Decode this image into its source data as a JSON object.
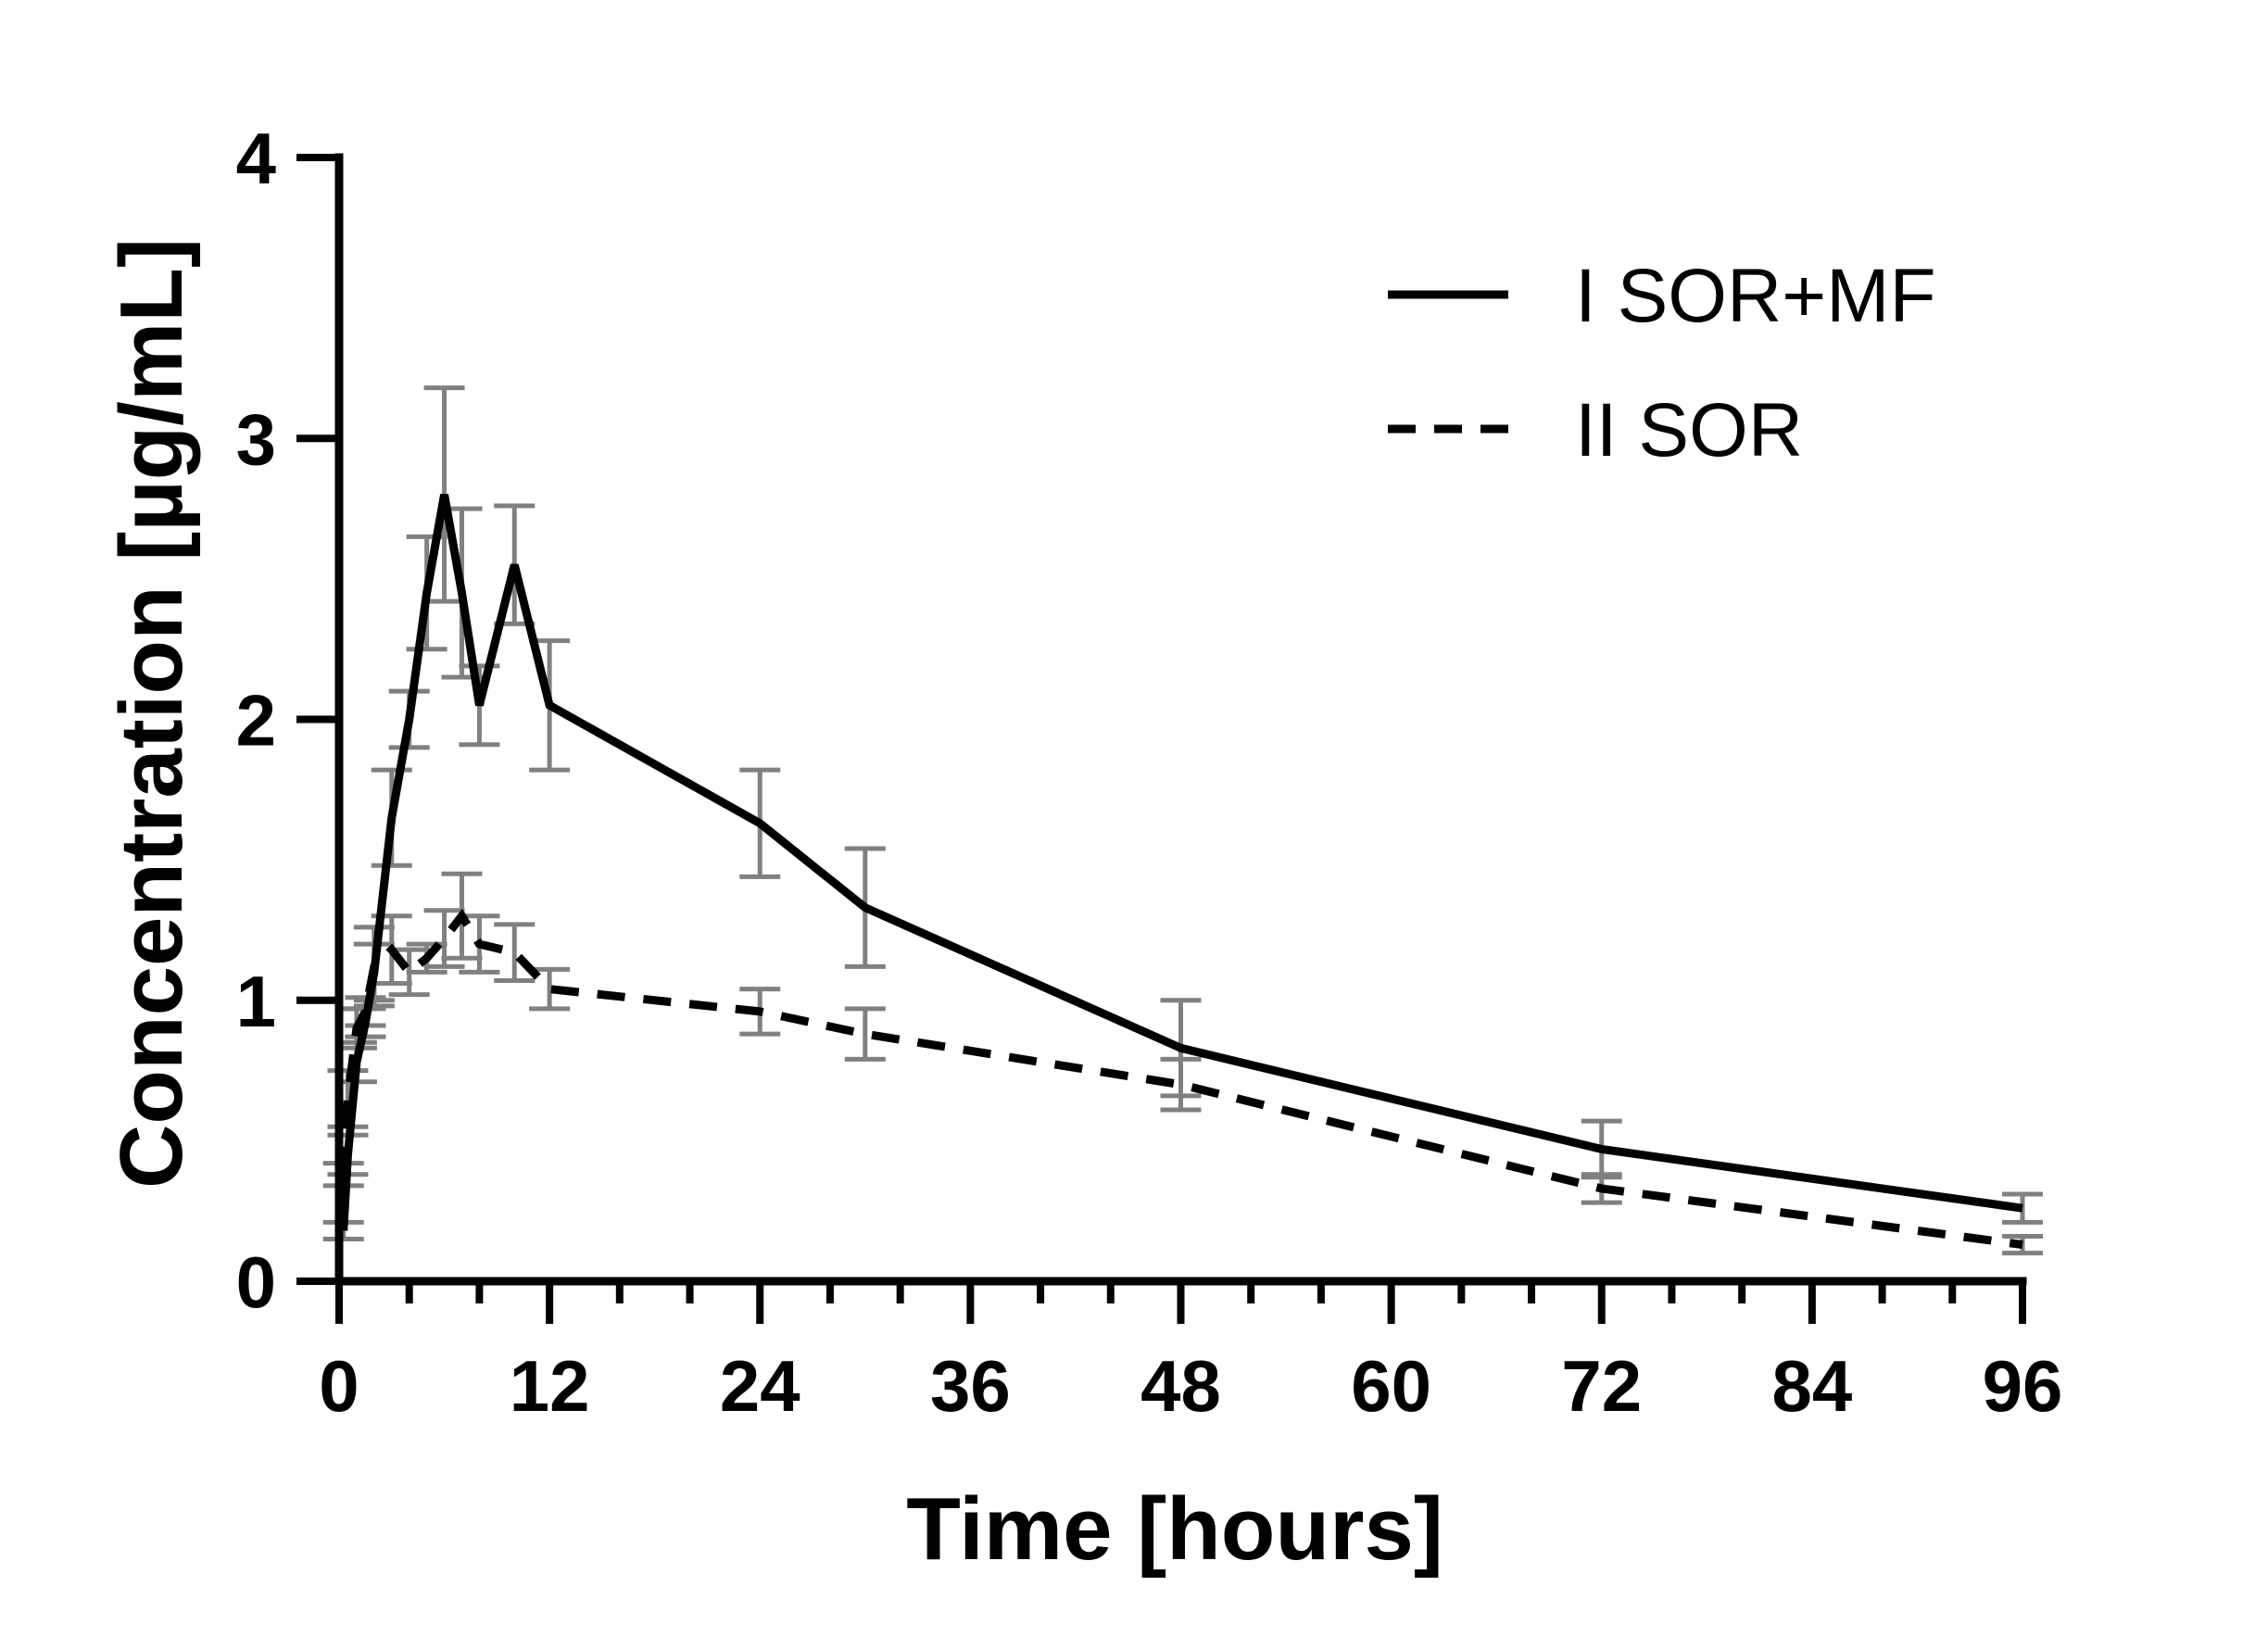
{
  "chart_data": {
    "type": "line",
    "xlabel": "Time [hours]",
    "ylabel": "Concentration [µg/mL]",
    "xlim": [
      0,
      96
    ],
    "ylim": [
      0,
      4
    ],
    "x_major_ticks": [
      0,
      12,
      24,
      36,
      48,
      60,
      72,
      84,
      96
    ],
    "x_tick_labels": [
      "0",
      "12",
      "24",
      "36",
      "48",
      "60",
      "72",
      "84",
      "96"
    ],
    "x_minor_step": 4,
    "y_ticks": [
      0,
      1,
      2,
      3,
      4
    ],
    "y_tick_labels": [
      "0",
      "1",
      "2",
      "3",
      "4"
    ],
    "grid": false,
    "legend_position": "top-right",
    "series": [
      {
        "name": "I SOR+MF",
        "style": "solid",
        "color": "#000000",
        "x": [
          0.25,
          0.5,
          1,
          1.5,
          2,
          3,
          4,
          5,
          6,
          7,
          8,
          10,
          12,
          24,
          30,
          48,
          72,
          96
        ],
        "y": [
          0.18,
          0.45,
          0.78,
          0.92,
          1.1,
          1.65,
          2.0,
          2.45,
          2.8,
          2.45,
          2.05,
          2.55,
          2.05,
          1.63,
          1.33,
          0.83,
          0.47,
          0.26
        ],
        "error": [
          0.03,
          0.07,
          0.07,
          0.05,
          0.1,
          0.17,
          0.1,
          0.2,
          0.38,
          0.3,
          0.14,
          0.21,
          0.23,
          0.19,
          0.21,
          0.17,
          0.1,
          0.05
        ]
      },
      {
        "name": "II SOR",
        "style": "dashed",
        "color": "#000000",
        "x": [
          0.25,
          0.5,
          1,
          1.5,
          2,
          3,
          4,
          5,
          6,
          7,
          8,
          10,
          12,
          24,
          30,
          48,
          72,
          96
        ],
        "y": [
          0.38,
          0.65,
          0.9,
          0.96,
          1.12,
          1.18,
          1.1,
          1.15,
          1.22,
          1.3,
          1.2,
          1.17,
          1.04,
          0.96,
          0.88,
          0.7,
          0.33,
          0.13
        ],
        "error": [
          0.04,
          0.1,
          0.07,
          0.05,
          0.14,
          0.12,
          0.08,
          0.05,
          0.1,
          0.15,
          0.1,
          0.1,
          0.07,
          0.08,
          0.09,
          0.09,
          0.05,
          0.03
        ]
      }
    ]
  }
}
